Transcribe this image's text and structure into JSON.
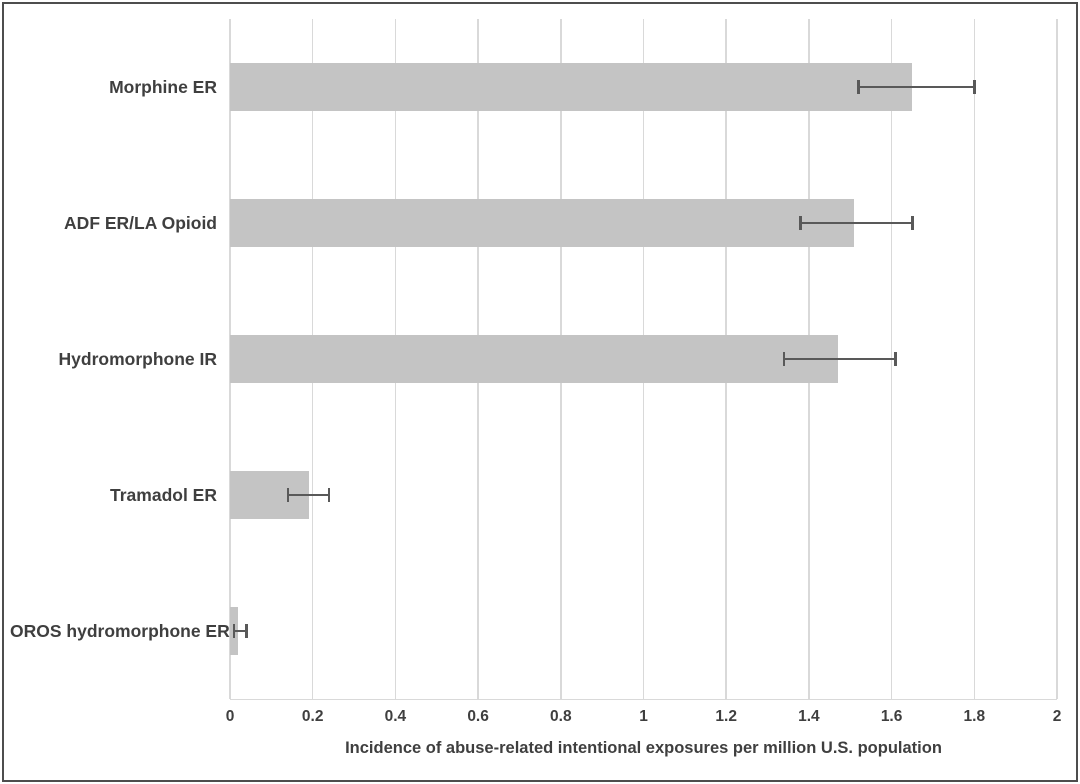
{
  "chart_data": {
    "type": "bar",
    "orientation": "horizontal",
    "title": "",
    "xlabel": "Incidence of abuse-related intentional exposures per million U.S. population",
    "ylabel": "",
    "categories": [
      "Morphine ER",
      "ADF ER/LA Opioid",
      "Hydromorphone IR",
      "Tramadol ER",
      "OROS hydromorphone ER"
    ],
    "values": [
      1.65,
      1.51,
      1.47,
      0.19,
      0.02
    ],
    "error_low": [
      1.52,
      1.38,
      1.34,
      0.14,
      0.01
    ],
    "error_high": [
      1.8,
      1.65,
      1.61,
      0.24,
      0.04
    ],
    "xlim": [
      0,
      2
    ],
    "xticks": [
      0,
      0.2,
      0.4,
      0.6,
      0.8,
      1,
      1.2,
      1.4,
      1.6,
      1.8,
      2
    ],
    "xtick_labels": [
      "0",
      "0.2",
      "0.4",
      "0.6",
      "0.8",
      "1",
      "1.2",
      "1.4",
      "1.6",
      "1.8",
      "2"
    ],
    "grid": "vertical",
    "legend": "none",
    "error_bars": "horizontal-both-ends-with-caps",
    "colors": {
      "bar_fill": "#c4c4c4",
      "gridline": "#d9d9d9",
      "axis_line": "#d9d9d9",
      "error_bar": "#595959",
      "text": "#3f3f3f",
      "frame_border": "#4d4d4d",
      "background": "#ffffff"
    }
  }
}
